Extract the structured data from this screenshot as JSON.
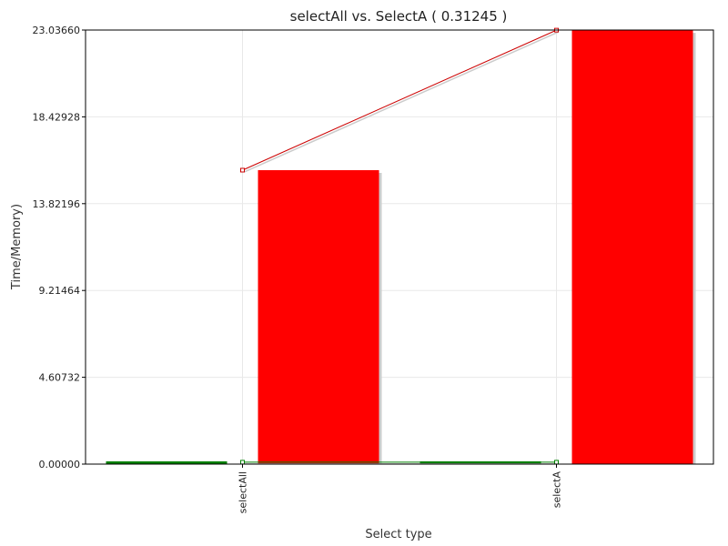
{
  "chart_data": {
    "type": "bar",
    "title": "selectAll vs. SelectA ( 0.31245 )",
    "xlabel": "Select type",
    "ylabel": "Time/Memory)",
    "categories": [
      "selectAll",
      "selectA"
    ],
    "yticks": [
      "0.00000",
      "4.60732",
      "9.21464",
      "13.82196",
      "18.42928",
      "23.03660"
    ],
    "ylim": [
      0,
      23.0366
    ],
    "grid": true,
    "legend": "none",
    "series": [
      {
        "kind": "bar",
        "color": "#008000",
        "values": [
          0.1,
          0.1
        ]
      },
      {
        "kind": "bar",
        "color": "#ff0000",
        "values": [
          15.6,
          23.03
        ]
      },
      {
        "kind": "line",
        "color": "#008000",
        "values": [
          0.1,
          0.1
        ]
      },
      {
        "kind": "line",
        "color": "#cc0000",
        "values": [
          15.6,
          23.03
        ]
      }
    ]
  }
}
